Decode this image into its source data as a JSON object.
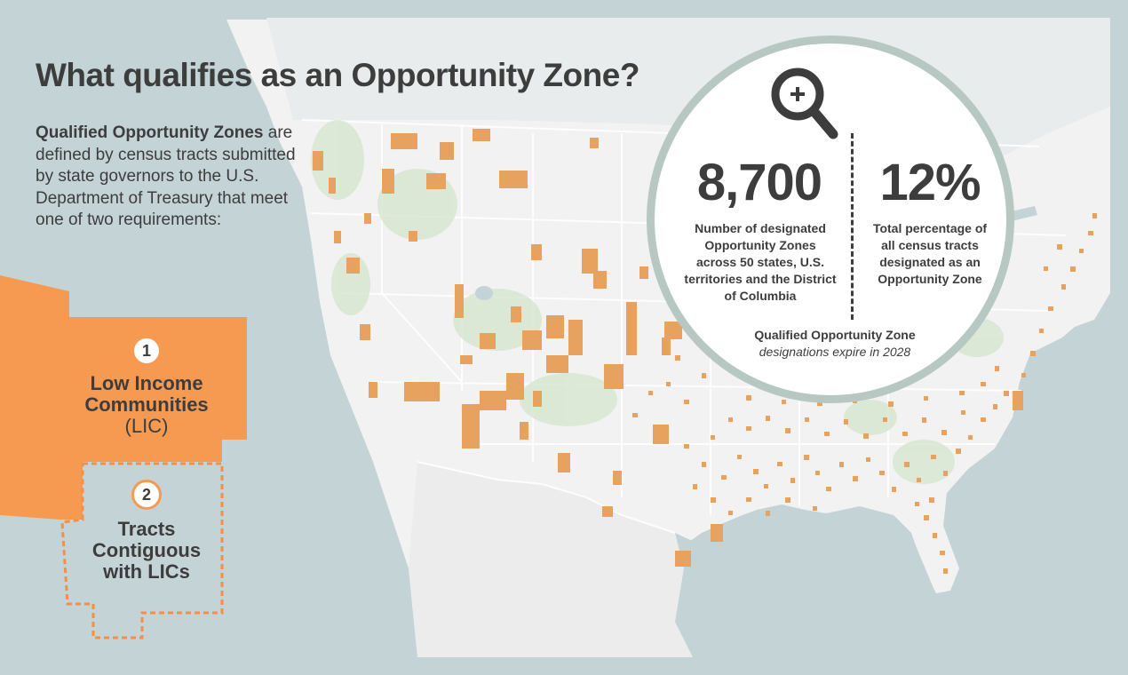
{
  "title": "What qualifies as an Opportunity Zone?",
  "intro": {
    "bold": "Qualified Opportunity Zones",
    "text": "are defined by census tracts submitted by state governors to the U.S. Department of Treasury that meet one of two requirements:"
  },
  "requirements": [
    {
      "number": "1",
      "line1": "Low Income",
      "line2": "Communities",
      "line3": "(LIC)"
    },
    {
      "number": "2",
      "line1": "Tracts",
      "line2": "Contiguous",
      "line3": "with LICs"
    }
  ],
  "stats": {
    "count_value": "8,700",
    "count_label": "Number of designated Opportunity Zones across 50 states, U.S. territories and the District of Columbia",
    "pct_value": "12%",
    "pct_label": "Total percentage of all census tracts designated as an Opportunity Zone"
  },
  "expiration": {
    "bold": "Qualified Opportunity Zone",
    "italic": "designations expire in 2028"
  },
  "icons": {
    "magnifier": "zoom-in-icon"
  },
  "colors": {
    "water": "#c4d3d6",
    "land": "#f2f2f2",
    "opportunity_zone": "#e7a25f",
    "requirement_fill": "#f79a51",
    "requirement_dash": "#f0904a",
    "text": "#3d3d3d",
    "circle_border": "#b7c7c2"
  }
}
